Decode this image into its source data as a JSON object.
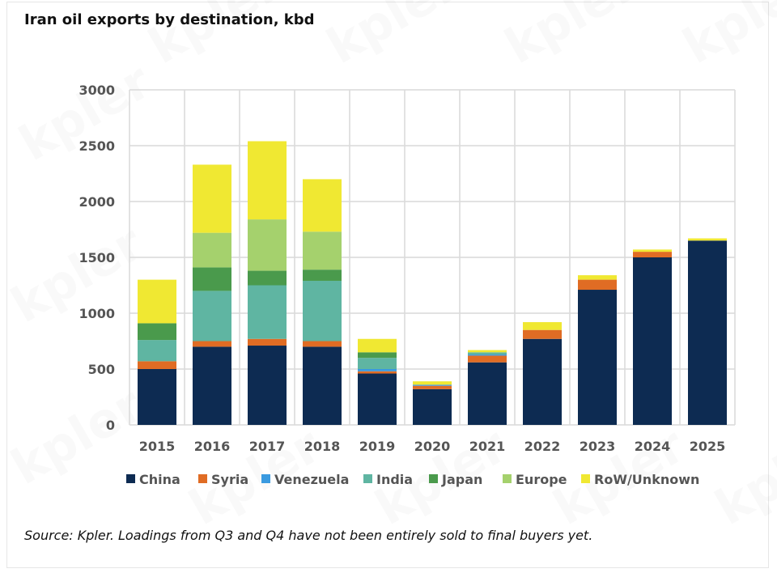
{
  "title": "Iran oil exports by destination, kbd",
  "source_note": "Source: Kpler. Loadings from Q3 and Q4 have not been entirely sold to final buyers yet.",
  "watermark": "kpler",
  "chart_data": {
    "type": "bar",
    "stacked": true,
    "title": "Iran oil exports by destination, kbd",
    "xlabel": "",
    "ylabel": "kbd",
    "ylim": [
      0,
      3000
    ],
    "yticks": [
      0,
      500,
      1000,
      1500,
      2000,
      2500,
      3000
    ],
    "grid": true,
    "legend_position": "bottom",
    "categories": [
      "2015",
      "2016",
      "2017",
      "2018",
      "2019",
      "2020",
      "2021",
      "2022",
      "2023",
      "2024",
      "2025"
    ],
    "series": [
      {
        "name": "China",
        "color": "#0d2b52",
        "values": [
          500,
          700,
          710,
          700,
          460,
          320,
          560,
          770,
          1210,
          1500,
          1650
        ]
      },
      {
        "name": "Syria",
        "color": "#e06c24",
        "values": [
          70,
          50,
          60,
          50,
          20,
          30,
          60,
          80,
          90,
          50,
          0
        ]
      },
      {
        "name": "Venezuela",
        "color": "#3a9ae0",
        "values": [
          0,
          0,
          0,
          0,
          20,
          10,
          10,
          0,
          0,
          0,
          0
        ]
      },
      {
        "name": "India",
        "color": "#5fb5a2",
        "values": [
          190,
          450,
          480,
          540,
          100,
          0,
          20,
          0,
          0,
          0,
          0
        ]
      },
      {
        "name": "Japan",
        "color": "#4a9a4c",
        "values": [
          150,
          210,
          130,
          100,
          50,
          0,
          0,
          0,
          0,
          0,
          0
        ]
      },
      {
        "name": "Europe",
        "color": "#a5d16d",
        "values": [
          0,
          310,
          460,
          340,
          0,
          0,
          0,
          0,
          0,
          0,
          0
        ]
      },
      {
        "name": "RoW/Unknown",
        "color": "#f0e832",
        "values": [
          390,
          610,
          700,
          470,
          120,
          30,
          20,
          70,
          40,
          20,
          20
        ]
      }
    ]
  }
}
